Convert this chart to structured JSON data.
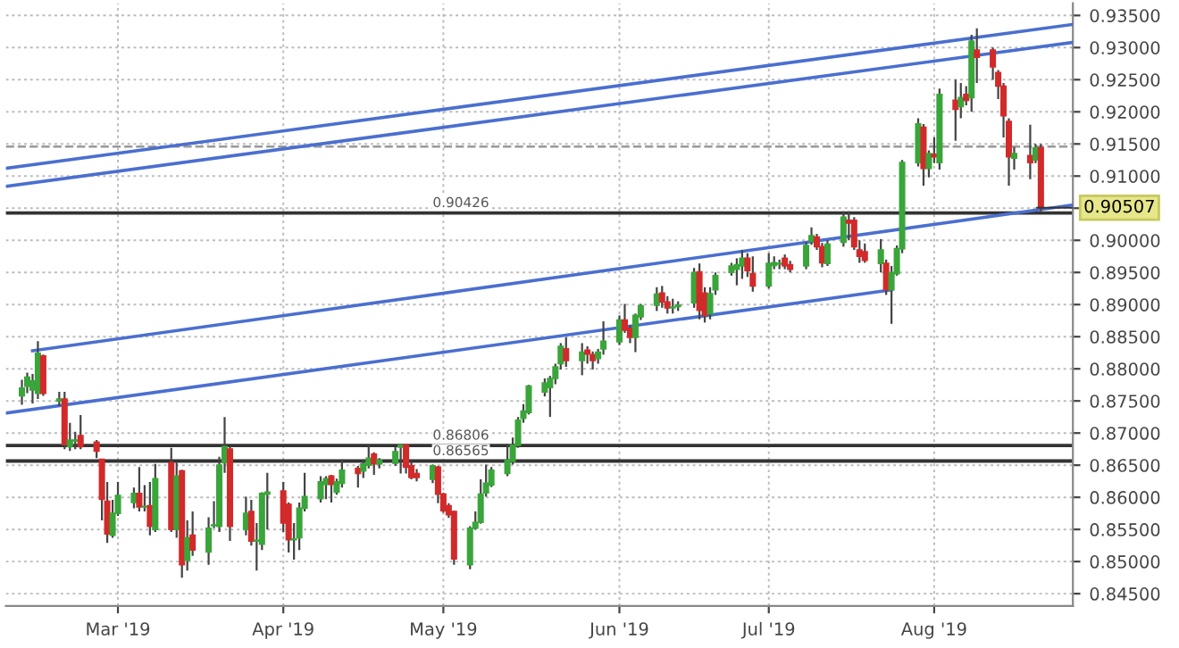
{
  "chart_data": {
    "type": "candlestick",
    "x": [
      "2019-02-11",
      "2019-02-12",
      "2019-02-13",
      "2019-02-14",
      "2019-02-15",
      "2019-02-18",
      "2019-02-19",
      "2019-02-20",
      "2019-02-21",
      "2019-02-22",
      "2019-02-25",
      "2019-02-26",
      "2019-02-27",
      "2019-02-28",
      "2019-03-01",
      "2019-03-04",
      "2019-03-05",
      "2019-03-06",
      "2019-03-07",
      "2019-03-08",
      "2019-03-11",
      "2019-03-12",
      "2019-03-13",
      "2019-03-14",
      "2019-03-15",
      "2019-03-18",
      "2019-03-19",
      "2019-03-20",
      "2019-03-21",
      "2019-03-22",
      "2019-03-25",
      "2019-03-26",
      "2019-03-27",
      "2019-03-28",
      "2019-03-29",
      "2019-04-01",
      "2019-04-02",
      "2019-04-03",
      "2019-04-04",
      "2019-04-05",
      "2019-04-08",
      "2019-04-09",
      "2019-04-10",
      "2019-04-11",
      "2019-04-12",
      "2019-04-15",
      "2019-04-16",
      "2019-04-17",
      "2019-04-18",
      "2019-04-19",
      "2019-04-22",
      "2019-04-23",
      "2019-04-24",
      "2019-04-25",
      "2019-04-26",
      "2019-04-29",
      "2019-04-30",
      "2019-05-01",
      "2019-05-02",
      "2019-05-03",
      "2019-05-06",
      "2019-05-07",
      "2019-05-08",
      "2019-05-09",
      "2019-05-10",
      "2019-05-13",
      "2019-05-14",
      "2019-05-15",
      "2019-05-16",
      "2019-05-17",
      "2019-05-20",
      "2019-05-21",
      "2019-05-22",
      "2019-05-23",
      "2019-05-24",
      "2019-05-27",
      "2019-05-28",
      "2019-05-29",
      "2019-05-30",
      "2019-05-31",
      "2019-06-03",
      "2019-06-04",
      "2019-06-05",
      "2019-06-06",
      "2019-06-07",
      "2019-06-10",
      "2019-06-11",
      "2019-06-12",
      "2019-06-13",
      "2019-06-14",
      "2019-06-17",
      "2019-06-18",
      "2019-06-19",
      "2019-06-20",
      "2019-06-21",
      "2019-06-24",
      "2019-06-25",
      "2019-06-26",
      "2019-06-27",
      "2019-06-28",
      "2019-07-01",
      "2019-07-02",
      "2019-07-03",
      "2019-07-04",
      "2019-07-05",
      "2019-07-08",
      "2019-07-09",
      "2019-07-10",
      "2019-07-11",
      "2019-07-12",
      "2019-07-15",
      "2019-07-16",
      "2019-07-17",
      "2019-07-18",
      "2019-07-19",
      "2019-07-22",
      "2019-07-23",
      "2019-07-24",
      "2019-07-25",
      "2019-07-26",
      "2019-07-29",
      "2019-07-30",
      "2019-07-31",
      "2019-08-01",
      "2019-08-02",
      "2019-08-05",
      "2019-08-06",
      "2019-08-07",
      "2019-08-08",
      "2019-08-09",
      "2019-08-12",
      "2019-08-13",
      "2019-08-14",
      "2019-08-15",
      "2019-08-16",
      "2019-08-19",
      "2019-08-20",
      "2019-08-21"
    ],
    "ohlc": [
      [
        0.8758,
        0.8783,
        0.8744,
        0.877
      ],
      [
        0.8773,
        0.8794,
        0.8762,
        0.8787
      ],
      [
        0.8767,
        0.8792,
        0.8746,
        0.8781
      ],
      [
        0.8762,
        0.8843,
        0.8753,
        0.8824
      ],
      [
        0.882,
        0.8822,
        0.8758,
        0.8762
      ],
      [
        0.875,
        0.8764,
        0.8742,
        0.8753
      ],
      [
        0.8753,
        0.8764,
        0.8675,
        0.8682
      ],
      [
        0.8679,
        0.8716,
        0.8672,
        0.8689
      ],
      [
        0.8688,
        0.8702,
        0.8675,
        0.8689
      ],
      [
        0.8696,
        0.8728,
        0.8675,
        0.8679
      ],
      [
        0.8686,
        0.8689,
        0.8661,
        0.8672
      ],
      [
        0.8659,
        0.8659,
        0.8564,
        0.8597
      ],
      [
        0.8594,
        0.8624,
        0.8529,
        0.8543
      ],
      [
        0.8541,
        0.8596,
        0.8537,
        0.8575
      ],
      [
        0.8575,
        0.8624,
        0.8571,
        0.8603
      ],
      [
        0.8592,
        0.8615,
        0.8583,
        0.8606
      ],
      [
        0.8606,
        0.8647,
        0.8578,
        0.8585
      ],
      [
        0.8585,
        0.8619,
        0.8578,
        0.8586
      ],
      [
        0.8587,
        0.8624,
        0.8541,
        0.8555
      ],
      [
        0.855,
        0.8652,
        0.8546,
        0.8629
      ],
      [
        0.8654,
        0.8677,
        0.8546,
        0.855
      ],
      [
        0.855,
        0.8654,
        0.8537,
        0.8633
      ],
      [
        0.8641,
        0.8643,
        0.8475,
        0.8495
      ],
      [
        0.8502,
        0.8564,
        0.8486,
        0.8537
      ],
      [
        0.8541,
        0.8578,
        0.8509,
        0.8518
      ],
      [
        0.8515,
        0.8569,
        0.8495,
        0.8552
      ],
      [
        0.8556,
        0.8594,
        0.8552,
        0.8557
      ],
      [
        0.8555,
        0.8663,
        0.8546,
        0.865
      ],
      [
        0.8654,
        0.8725,
        0.8638,
        0.8679
      ],
      [
        0.8675,
        0.8679,
        0.8532,
        0.8555
      ],
      [
        0.855,
        0.8601,
        0.8541,
        0.8575
      ],
      [
        0.8578,
        0.8596,
        0.8525,
        0.8532
      ],
      [
        0.8532,
        0.856,
        0.8486,
        0.8533
      ],
      [
        0.8527,
        0.8608,
        0.8518,
        0.8606
      ],
      [
        0.8605,
        0.8638,
        0.855,
        0.8608
      ],
      [
        0.861,
        0.8624,
        0.8546,
        0.856
      ],
      [
        0.8589,
        0.8592,
        0.8514,
        0.8534
      ],
      [
        0.8534,
        0.856,
        0.8503,
        0.8535
      ],
      [
        0.8537,
        0.8592,
        0.8518,
        0.8583
      ],
      [
        0.8583,
        0.8638,
        0.8578,
        0.8601
      ],
      [
        0.8598,
        0.8633,
        0.8592,
        0.8624
      ],
      [
        0.862,
        0.8633,
        0.8597,
        0.8629
      ],
      [
        0.8633,
        0.8635,
        0.8592,
        0.862
      ],
      [
        0.8608,
        0.8629,
        0.8604,
        0.8624
      ],
      [
        0.8622,
        0.8659,
        0.8615,
        0.8642
      ],
      [
        0.8645,
        0.8649,
        0.8615,
        0.8637
      ],
      [
        0.8641,
        0.8659,
        0.863,
        0.8652
      ],
      [
        0.865,
        0.8681,
        0.8645,
        0.8661
      ],
      [
        0.8667,
        0.867,
        0.8635,
        0.8652
      ],
      [
        0.8652,
        0.8661,
        0.8645,
        0.8658
      ],
      [
        0.8653,
        0.8679,
        0.8649,
        0.8671
      ],
      [
        0.8678,
        0.8682,
        0.8637,
        0.8681
      ],
      [
        0.8681,
        0.8682,
        0.8637,
        0.8647
      ],
      [
        0.8649,
        0.8656,
        0.8628,
        0.8631
      ],
      [
        0.8637,
        0.8644,
        0.8625,
        0.8631
      ],
      [
        0.8628,
        0.8651,
        0.8622,
        0.8649
      ],
      [
        0.8647,
        0.8649,
        0.8591,
        0.8605
      ],
      [
        0.8605,
        0.8607,
        0.8576,
        0.8579
      ],
      [
        0.8587,
        0.8591,
        0.8568,
        0.8573
      ],
      [
        0.8578,
        0.8579,
        0.8495,
        0.8504
      ],
      [
        0.8495,
        0.8555,
        0.8488,
        0.8552
      ],
      [
        0.8552,
        0.8578,
        0.855,
        0.8561
      ],
      [
        0.8561,
        0.8628,
        0.8559,
        0.8605
      ],
      [
        0.8607,
        0.8651,
        0.8601,
        0.8622
      ],
      [
        0.8619,
        0.8647,
        0.8616,
        0.8642
      ],
      [
        0.8637,
        0.8683,
        0.8633,
        0.8658
      ],
      [
        0.8656,
        0.8693,
        0.8651,
        0.8681
      ],
      [
        0.8681,
        0.8725,
        0.8677,
        0.872
      ],
      [
        0.8723,
        0.8745,
        0.8716,
        0.8734
      ],
      [
        0.8732,
        0.8775,
        0.8729,
        0.8773
      ],
      [
        0.8764,
        0.8785,
        0.8757,
        0.8778
      ],
      [
        0.8771,
        0.8789,
        0.8725,
        0.8785
      ],
      [
        0.8785,
        0.8808,
        0.8776,
        0.8803
      ],
      [
        0.8808,
        0.884,
        0.8799,
        0.8835
      ],
      [
        0.8831,
        0.8849,
        0.8803,
        0.8813
      ],
      [
        0.8813,
        0.884,
        0.879,
        0.8826
      ],
      [
        0.8829,
        0.8835,
        0.8808,
        0.8823
      ],
      [
        0.8822,
        0.8827,
        0.8799,
        0.8813
      ],
      [
        0.8816,
        0.8831,
        0.8808,
        0.8826
      ],
      [
        0.8831,
        0.8874,
        0.8822,
        0.8843
      ],
      [
        0.8842,
        0.8883,
        0.8837,
        0.8876
      ],
      [
        0.8876,
        0.8901,
        0.8856,
        0.886
      ],
      [
        0.8863,
        0.8868,
        0.884,
        0.8849
      ],
      [
        0.8849,
        0.8886,
        0.8826,
        0.8883
      ],
      [
        0.8881,
        0.8901,
        0.8876,
        0.8898
      ],
      [
        0.8899,
        0.8927,
        0.889,
        0.8916
      ],
      [
        0.8918,
        0.8929,
        0.8895,
        0.8904
      ],
      [
        0.8904,
        0.8913,
        0.8886,
        0.8895
      ],
      [
        0.8895,
        0.8909,
        0.8886,
        0.8896
      ],
      [
        0.8897,
        0.8905,
        0.889,
        0.8899
      ],
      [
        0.8903,
        0.8957,
        0.8895,
        0.895
      ],
      [
        0.8951,
        0.8964,
        0.8877,
        0.8891
      ],
      [
        0.8918,
        0.8927,
        0.8872,
        0.8883
      ],
      [
        0.8886,
        0.8927,
        0.8877,
        0.8917
      ],
      [
        0.8923,
        0.895,
        0.8915,
        0.8945
      ],
      [
        0.895,
        0.8965,
        0.8945,
        0.896
      ],
      [
        0.8955,
        0.8972,
        0.893,
        0.8962
      ],
      [
        0.896,
        0.8985,
        0.894,
        0.8972
      ],
      [
        0.8972,
        0.898,
        0.8943,
        0.8953
      ],
      [
        0.8948,
        0.8975,
        0.892,
        0.8929
      ],
      [
        0.8929,
        0.898,
        0.8925,
        0.8964
      ],
      [
        0.8961,
        0.8975,
        0.8955,
        0.8965
      ],
      [
        0.8963,
        0.897,
        0.8955,
        0.8964
      ],
      [
        0.8972,
        0.8978,
        0.8955,
        0.896
      ],
      [
        0.8962,
        0.8968,
        0.895,
        0.8955
      ],
      [
        0.896,
        0.8997,
        0.8955,
        0.8992
      ],
      [
        0.8998,
        0.902,
        0.8993,
        0.9007
      ],
      [
        0.9005,
        0.901,
        0.8985,
        0.899
      ],
      [
        0.899,
        0.8996,
        0.8958,
        0.8965
      ],
      [
        0.8964,
        0.9,
        0.896,
        0.8994
      ],
      [
        0.8997,
        0.9045,
        0.899,
        0.9036
      ],
      [
        0.9031,
        0.9045,
        0.9,
        0.9027
      ],
      [
        0.9031,
        0.9036,
        0.8985,
        0.899
      ],
      [
        0.8985,
        0.9,
        0.8965,
        0.8975
      ],
      [
        0.8982,
        0.8995,
        0.8965,
        0.8969
      ],
      [
        0.8964,
        0.9002,
        0.895,
        0.8985
      ],
      [
        0.8964,
        0.897,
        0.8915,
        0.8923
      ],
      [
        0.8923,
        0.896,
        0.887,
        0.895
      ],
      [
        0.8948,
        0.8992,
        0.8945,
        0.8987
      ],
      [
        0.8987,
        0.9125,
        0.898,
        0.9121
      ],
      [
        0.9121,
        0.919,
        0.9115,
        0.9181
      ],
      [
        0.9176,
        0.9181,
        0.9085,
        0.9112
      ],
      [
        0.9112,
        0.914,
        0.9098,
        0.9135
      ],
      [
        0.9134,
        0.916,
        0.912,
        0.913
      ],
      [
        0.9121,
        0.9236,
        0.911,
        0.9227
      ],
      [
        0.9218,
        0.925,
        0.9155,
        0.9204
      ],
      [
        0.9208,
        0.9245,
        0.919,
        0.9222
      ],
      [
        0.9227,
        0.924,
        0.921,
        0.9218
      ],
      [
        0.9222,
        0.932,
        0.92,
        0.931
      ],
      [
        0.9296,
        0.933,
        0.9245,
        0.9285
      ],
      [
        0.9296,
        0.93,
        0.925,
        0.927
      ],
      [
        0.9261,
        0.9265,
        0.922,
        0.924
      ],
      [
        0.924,
        0.9245,
        0.916,
        0.9194
      ],
      [
        0.9185,
        0.919,
        0.9085,
        0.913
      ],
      [
        0.9128,
        0.9145,
        0.911,
        0.9135
      ],
      [
        0.9132,
        0.918,
        0.9095,
        0.9121
      ],
      [
        0.9125,
        0.915,
        0.912,
        0.9144
      ],
      [
        0.9144,
        0.915,
        0.9045,
        0.90507
      ]
    ],
    "series": [
      {
        "type": "line",
        "color": "#4a6fd0",
        "x": [
          "2019-02-08",
          "2019-08-27"
        ],
        "values": [
          0.9112,
          0.9336
        ]
      },
      {
        "type": "line",
        "color": "#4a6fd0",
        "x": [
          "2019-02-08",
          "2019-08-27"
        ],
        "values": [
          0.9084,
          0.9308
        ]
      },
      {
        "type": "line",
        "color": "#4a6fd0",
        "x": [
          "2019-02-13",
          "2019-08-27"
        ],
        "values": [
          0.8828,
          0.9055
        ]
      },
      {
        "type": "line",
        "color": "#4a6fd0",
        "x": [
          "2019-02-08",
          "2019-07-24"
        ],
        "values": [
          0.8731,
          0.8923
        ]
      }
    ],
    "ref_lines": [
      {
        "axis": "y",
        "value": 0.90426,
        "label": "0.90426",
        "color": "#333333",
        "line_style": "solid"
      },
      {
        "axis": "y",
        "value": 0.86806,
        "label": "0.86806",
        "color": "#333333",
        "line_style": "solid"
      },
      {
        "axis": "y",
        "value": 0.86565,
        "label": "0.86565",
        "color": "#333333",
        "line_style": "solid"
      },
      {
        "axis": "y",
        "value": 0.9146,
        "label": null,
        "color": "#999999",
        "line_style": "dashed"
      }
    ],
    "annotations": [
      {
        "text": "0.90507",
        "x": "2019-08-21",
        "y": 0.90507
      }
    ],
    "xlim": [
      "2019-02-08",
      "2019-08-27"
    ],
    "xticks": [
      {
        "value": "2019-03-01",
        "label": "Mar '19"
      },
      {
        "value": "2019-04-01",
        "label": "Apr '19"
      },
      {
        "value": "2019-05-01",
        "label": "May '19"
      },
      {
        "value": "2019-06-03",
        "label": "Jun '19"
      },
      {
        "value": "2019-07-01",
        "label": "Jul '19"
      },
      {
        "value": "2019-08-01",
        "label": "Aug '19"
      }
    ],
    "ylim": [
      0.8431,
      0.9369
    ],
    "yticks": [
      {
        "value": 0.845,
        "label": "0.84500"
      },
      {
        "value": 0.85,
        "label": "0.85000"
      },
      {
        "value": 0.855,
        "label": "0.85500"
      },
      {
        "value": 0.86,
        "label": "0.86000"
      },
      {
        "value": 0.865,
        "label": "0.86500"
      },
      {
        "value": 0.87,
        "label": "0.87000"
      },
      {
        "value": 0.875,
        "label": "0.87500"
      },
      {
        "value": 0.88,
        "label": "0.88000"
      },
      {
        "value": 0.885,
        "label": "0.88500"
      },
      {
        "value": 0.89,
        "label": "0.89000"
      },
      {
        "value": 0.895,
        "label": "0.89500"
      },
      {
        "value": 0.9,
        "label": "0.90000"
      },
      {
        "value": 0.905,
        "label": null
      },
      {
        "value": 0.91,
        "label": "0.91000"
      },
      {
        "value": 0.915,
        "label": "0.91500"
      },
      {
        "value": 0.92,
        "label": "0.92000"
      },
      {
        "value": 0.925,
        "label": "0.92500"
      },
      {
        "value": 0.93,
        "label": "0.93000"
      },
      {
        "value": 0.935,
        "label": "0.93500"
      }
    ],
    "grid": true,
    "legend": false
  }
}
